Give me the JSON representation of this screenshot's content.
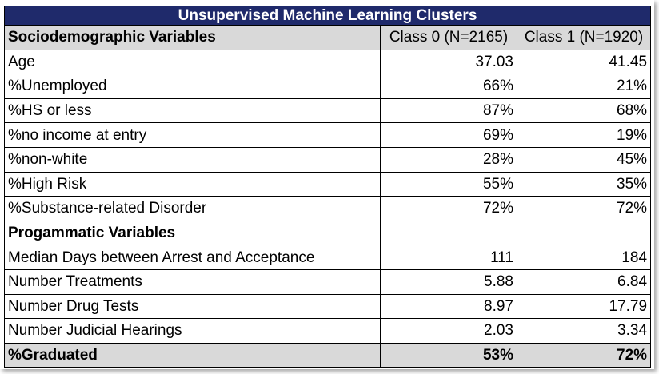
{
  "title": "Unsupervised Machine Learning Clusters",
  "columns": {
    "variable": "Sociodemographic Variables",
    "class0": "Class 0 (N=2165)",
    "class1": "Class 1 (N=1920)"
  },
  "sociodemographic": [
    {
      "label": "Age",
      "c0": "37.03",
      "c1": "41.45"
    },
    {
      "label": "%Unemployed",
      "c0": "66%",
      "c1": "21%"
    },
    {
      "label": "%HS or less",
      "c0": "87%",
      "c1": "68%"
    },
    {
      "label": "%no income at entry",
      "c0": "69%",
      "c1": "19%"
    },
    {
      "label": "%non-white",
      "c0": "28%",
      "c1": "45%"
    },
    {
      "label": "%High Risk",
      "c0": "55%",
      "c1": "35%"
    },
    {
      "label": "%Substance-related Disorder",
      "c0": "72%",
      "c1": "72%"
    }
  ],
  "programmatic_header": "Progammatic Variables",
  "programmatic": [
    {
      "label": "Median Days between Arrest and Acceptance",
      "c0": "111",
      "c1": "184"
    },
    {
      "label": "Number Treatments",
      "c0": "5.88",
      "c1": "6.84"
    },
    {
      "label": "Number Drug Tests",
      "c0": "8.97",
      "c1": "17.79"
    },
    {
      "label": "Number Judicial Hearings",
      "c0": "2.03",
      "c1": "3.34"
    }
  ],
  "total": {
    "label": "%Graduated",
    "c0": "53%",
    "c1": "72%"
  }
}
